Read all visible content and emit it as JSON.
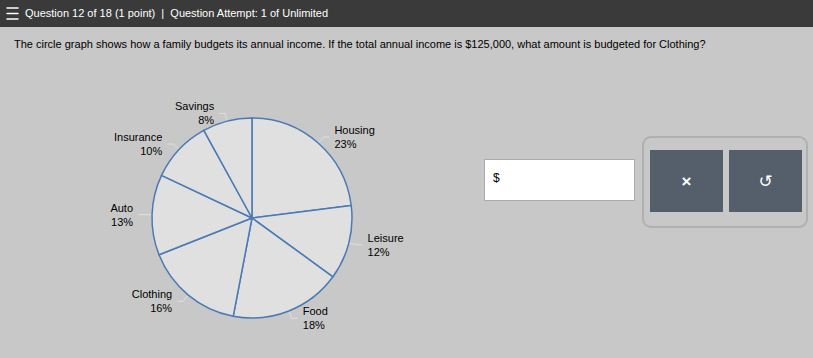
{
  "chart_data": {
    "type": "pie",
    "title": "Question 12 of 18 (1 point)  |  Question Attempt: 1 of Unlimited",
    "subtitle": "The circle graph shows how a family budgets its annual income. If the total annual income is $125,000, what amount is budgeted for Clothing?",
    "categories": [
      "Housing",
      "Leisure",
      "Food",
      "Clothing",
      "Auto",
      "Insurance",
      "Savings"
    ],
    "values": [
      23,
      12,
      18,
      16,
      13,
      10,
      8
    ],
    "value_labels": [
      "23%",
      "12%",
      "18%",
      "16%",
      "13%",
      "10%",
      "8%"
    ],
    "data_labels": true,
    "colors": [
      "#e0e0e0",
      "#e0e0e0",
      "#e0e0e0",
      "#e0e0e0",
      "#e0e0e0",
      "#e0e0e0",
      "#e0e0e0"
    ],
    "annotations": [
      "$",
      "×",
      "↺"
    ]
  }
}
